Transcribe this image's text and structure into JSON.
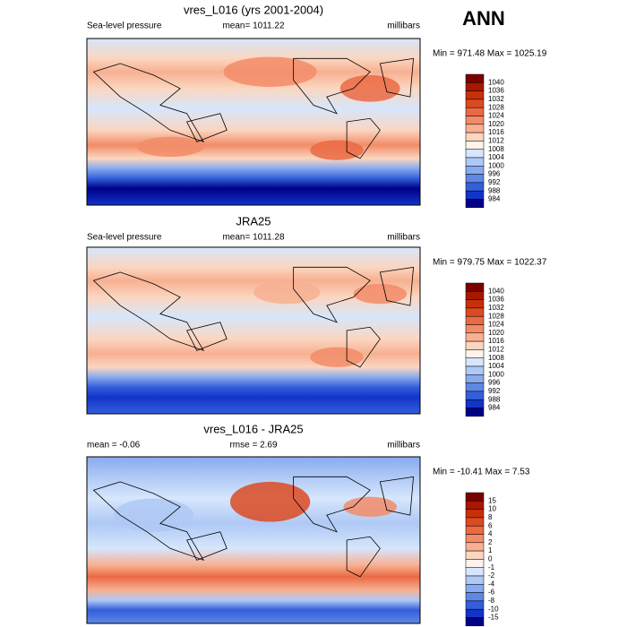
{
  "label": "ANN",
  "panels": [
    {
      "title": "vres_L016 (yrs 2001-2004)",
      "left": "Sea-level pressure",
      "center": "mean= 1011.22",
      "right": "millibars",
      "minmax": "Min = 971.48 Max = 1025.19",
      "colorbar": {
        "labels": [
          "1040",
          "1036",
          "1032",
          "1028",
          "1024",
          "1020",
          "1016",
          "1012",
          "1008",
          "1004",
          "1000",
          "996",
          "992",
          "988",
          "984"
        ],
        "colors": [
          "#7a0000",
          "#a81800",
          "#c8300a",
          "#dc4a22",
          "#ea6a44",
          "#f28c68",
          "#f7b092",
          "#fbd6c0",
          "#fff3ec",
          "#d6e6fc",
          "#afc9f5",
          "#88aaee",
          "#5f87e6",
          "#335fda",
          "#1234c8",
          "#000088"
        ]
      }
    },
    {
      "title": "JRA25",
      "left": "Sea-level pressure",
      "center": "mean= 1011.28",
      "right": "millibars",
      "minmax": "Min = 979.75 Max = 1022.37",
      "colorbar": {
        "labels": [
          "1040",
          "1036",
          "1032",
          "1028",
          "1024",
          "1020",
          "1016",
          "1012",
          "1008",
          "1004",
          "1000",
          "996",
          "992",
          "988",
          "984"
        ],
        "colors": [
          "#7a0000",
          "#a81800",
          "#c8300a",
          "#dc4a22",
          "#ea6a44",
          "#f28c68",
          "#f7b092",
          "#fbd6c0",
          "#fff3ec",
          "#d6e6fc",
          "#afc9f5",
          "#88aaee",
          "#5f87e6",
          "#335fda",
          "#1234c8",
          "#000088"
        ]
      }
    },
    {
      "title": "vres_L016 - JRA25",
      "left": "mean =  -0.06",
      "center": "rmse =   2.69",
      "right": "millibars",
      "minmax": "Min = -10.41 Max =   7.53",
      "colorbar": {
        "labels": [
          "15",
          "10",
          "8",
          "6",
          "4",
          "2",
          "1",
          "0",
          "-1",
          "-2",
          "-4",
          "-6",
          "-8",
          "-10",
          "-15"
        ],
        "colors": [
          "#7a0000",
          "#a81800",
          "#c8300a",
          "#dc4a22",
          "#ea6a44",
          "#f28c68",
          "#f7b092",
          "#fbd6c0",
          "#fff3ec",
          "#d6e6fc",
          "#afc9f5",
          "#88aaee",
          "#5f87e6",
          "#335fda",
          "#1234c8",
          "#000088"
        ]
      }
    }
  ]
}
